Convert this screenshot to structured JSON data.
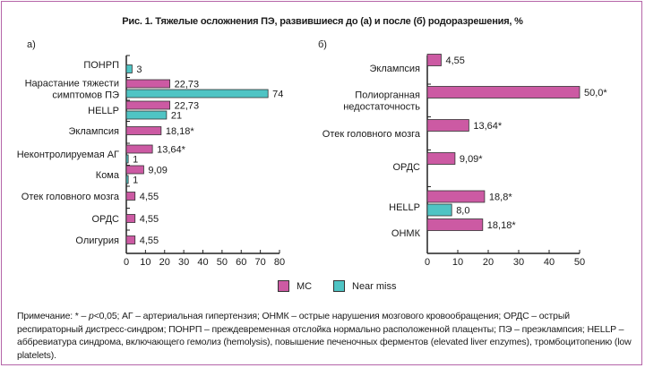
{
  "figure": {
    "title": "Рис. 1. Тяжелые осложнения ПЭ, развившиеся до (а) и после (б) родоразрешения, %",
    "border_color": "#b565a8"
  },
  "legend": {
    "items": [
      {
        "label": "МС",
        "color": "#cc5aa3"
      },
      {
        "label": "Near miss",
        "color": "#4fc4c4"
      }
    ]
  },
  "note": {
    "prefix": "Примечание: * – ",
    "p_italic": "p",
    "text": "<0,05; АГ – артериальная гипертензия; ОНМК – острые нарушения мозгового кровообращения; ОРДС – острый респираторный дистресс-синдром; ПОНРП – преждевременная отслойка нормально расположенной плаценты; ПЭ – преэклампсия; HELLP – аббревиатура синдрома, включающего гемолиз (hemolysis), повышение печеночных ферментов (elevated liver enzymes), тромбоцитопению (low platelets)."
  },
  "chart_data": [
    {
      "type": "bar",
      "orientation": "horizontal",
      "panel_label": "а)",
      "xlim": [
        0,
        80
      ],
      "xticks": [
        0,
        10,
        20,
        30,
        40,
        50,
        60,
        70,
        80
      ],
      "categories": [
        [
          "ПОНРП"
        ],
        [
          "Нарастание тяжести",
          "симптомов ПЭ"
        ],
        [
          "HELLP"
        ],
        [
          "Эклампсия"
        ],
        [
          "Неконтролируемая АГ"
        ],
        [
          "Кома"
        ],
        [
          "Отек головного мозга"
        ],
        [
          "ОРДС"
        ],
        [
          "Олигурия"
        ]
      ],
      "series": [
        {
          "name": "МС",
          "values": [
            null,
            22.73,
            22.73,
            18.18,
            13.64,
            9.09,
            4.55,
            4.55,
            4.55
          ],
          "labels": [
            null,
            "22,73",
            "22,73",
            "18,18*",
            "13,64*",
            "9,09",
            "4,55",
            "4,55",
            "4,55"
          ]
        },
        {
          "name": "Near miss",
          "values": [
            3,
            74,
            21,
            null,
            1,
            1,
            null,
            null,
            null
          ],
          "labels": [
            "3",
            "74",
            "21",
            null,
            "1",
            "1",
            null,
            null,
            null
          ]
        }
      ]
    },
    {
      "type": "bar",
      "orientation": "horizontal",
      "panel_label": "б)",
      "xlim": [
        0,
        50
      ],
      "xticks": [
        0,
        10,
        20,
        30,
        40,
        50
      ],
      "categories": [
        [
          "Эклампсия"
        ],
        [
          "Полиорганная",
          "недостаточность"
        ],
        [
          "Отек головного мозга"
        ],
        [
          "ОРДС"
        ],
        [
          "HELLP"
        ],
        [
          "ОНМК"
        ]
      ],
      "series": [
        {
          "name": "МС",
          "values": [
            4.55,
            50.0,
            13.64,
            9.09,
            18.8,
            18.18
          ],
          "labels": [
            "4,55",
            "50,0*",
            "13,64*",
            "9,09*",
            "18,8*",
            "18,18*"
          ]
        },
        {
          "name": "Near miss",
          "values": [
            null,
            null,
            null,
            null,
            8.0,
            null
          ],
          "labels": [
            null,
            null,
            null,
            null,
            "8,0",
            null
          ]
        }
      ]
    }
  ]
}
